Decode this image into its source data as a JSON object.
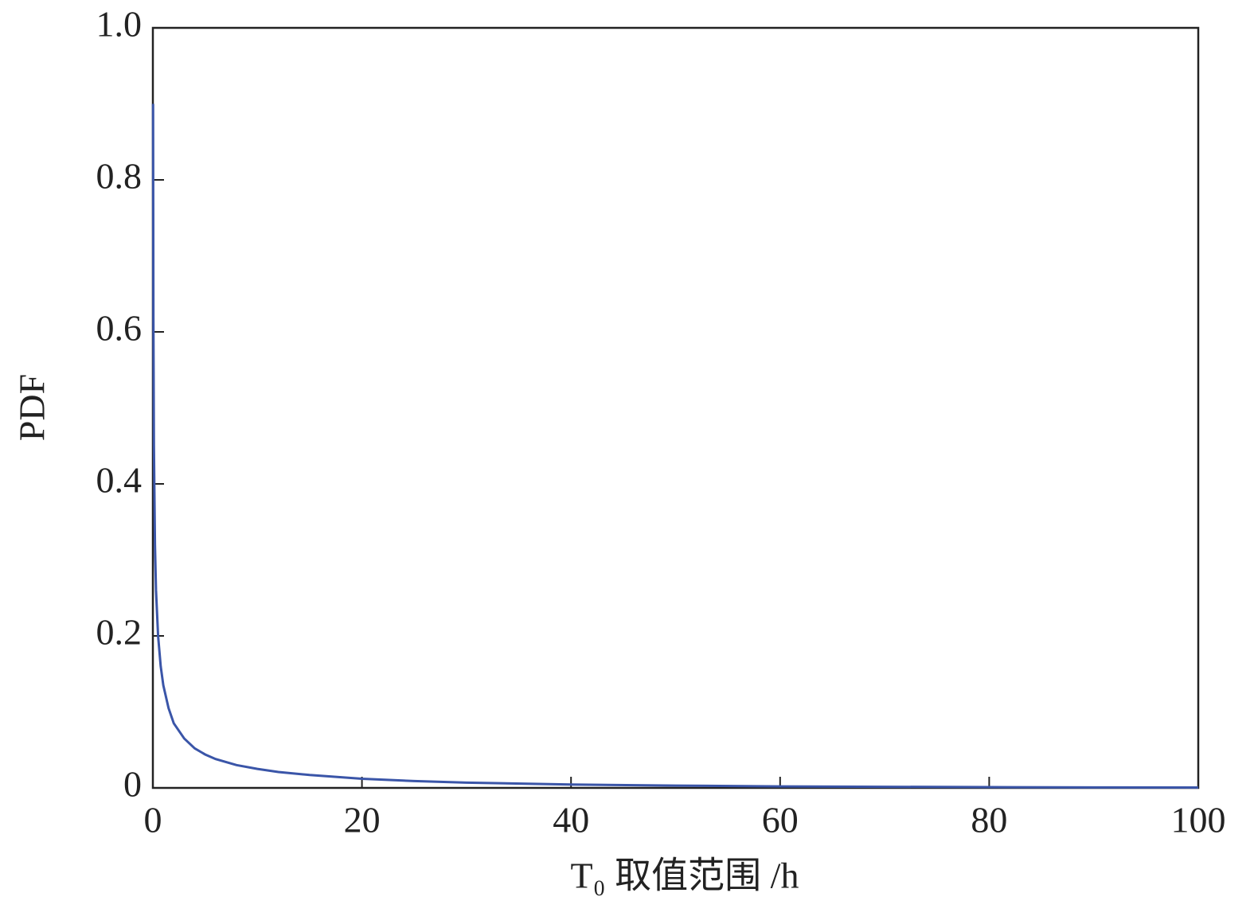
{
  "chart_data": {
    "type": "line",
    "xlabel": "T₀ 取值范围 /h",
    "ylabel": "PDF",
    "x": [
      0.02,
      0.05,
      0.1,
      0.2,
      0.3,
      0.5,
      0.75,
      1,
      1.5,
      2,
      3,
      4,
      5,
      6,
      8,
      10,
      12,
      15,
      20,
      25,
      30,
      40,
      50,
      60,
      70,
      80,
      90,
      100
    ],
    "values": [
      0.9,
      0.62,
      0.45,
      0.32,
      0.26,
      0.2,
      0.16,
      0.135,
      0.105,
      0.085,
      0.065,
      0.052,
      0.044,
      0.038,
      0.03,
      0.025,
      0.021,
      0.017,
      0.012,
      0.009,
      0.007,
      0.0045,
      0.003,
      0.002,
      0.0015,
      0.001,
      0.0007,
      0.0005
    ],
    "color": "#3a55a8",
    "xlim": [
      0,
      100
    ],
    "xticks": [
      0,
      20,
      40,
      60,
      80,
      100
    ],
    "ylim": [
      0,
      1
    ],
    "yticks": [
      0,
      0.2,
      0.4,
      0.6,
      0.8,
      {
        "value": 1,
        "label": "1.0"
      }
    ]
  }
}
